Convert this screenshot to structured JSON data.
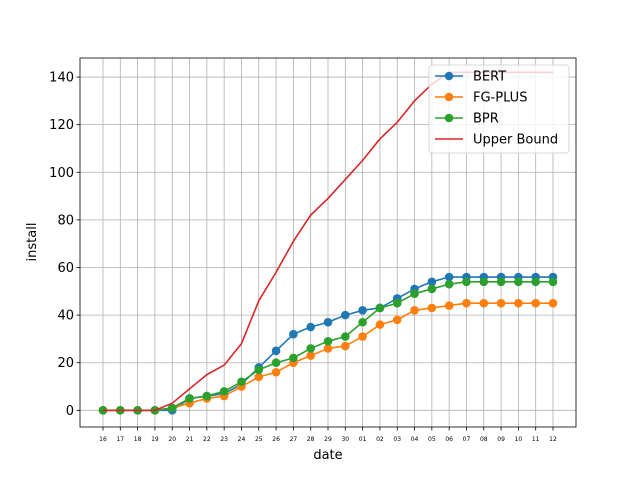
{
  "chart_data": {
    "type": "line",
    "xlabel": "date",
    "ylabel": "install",
    "categories": [
      "16",
      "17",
      "18",
      "19",
      "20",
      "21",
      "22",
      "23",
      "24",
      "25",
      "26",
      "27",
      "28",
      "29",
      "30",
      "01",
      "02",
      "03",
      "04",
      "05",
      "06",
      "07",
      "08",
      "09",
      "10",
      "11",
      "12"
    ],
    "ylim": [
      -7,
      148
    ],
    "yticks": [
      0,
      20,
      40,
      60,
      80,
      100,
      120,
      140
    ],
    "grid": true,
    "legend_position": "top-right",
    "series": [
      {
        "name": "BERT",
        "color": "#1f77b4",
        "marker": "circle",
        "values": [
          0,
          0,
          0,
          0,
          0,
          5,
          6,
          7,
          11,
          18,
          25,
          32,
          35,
          37,
          40,
          42,
          43,
          47,
          51,
          54,
          56,
          56,
          56,
          56,
          56,
          56,
          56
        ]
      },
      {
        "name": "FG-PLUS",
        "color": "#ff7f0e",
        "marker": "circle",
        "values": [
          0,
          0,
          0,
          0,
          1,
          3,
          5,
          6,
          10,
          14,
          16,
          20,
          23,
          26,
          27,
          31,
          36,
          38,
          42,
          43,
          44,
          45,
          45,
          45,
          45,
          45,
          45
        ]
      },
      {
        "name": "BPR",
        "color": "#2ca02c",
        "marker": "circle",
        "values": [
          0,
          0,
          0,
          0,
          1,
          5,
          6,
          8,
          12,
          17,
          20,
          22,
          26,
          29,
          31,
          37,
          43,
          45,
          49,
          51,
          53,
          54,
          54,
          54,
          54,
          54,
          54
        ]
      },
      {
        "name": "Upper Bound",
        "color": "#d62728",
        "marker": "none",
        "values": [
          0,
          0,
          0,
          0,
          3,
          9,
          15,
          19,
          28,
          46,
          58,
          71,
          82,
          89,
          97,
          105,
          114,
          121,
          130,
          137,
          142,
          142,
          142,
          142,
          142,
          142,
          142
        ]
      }
    ]
  }
}
